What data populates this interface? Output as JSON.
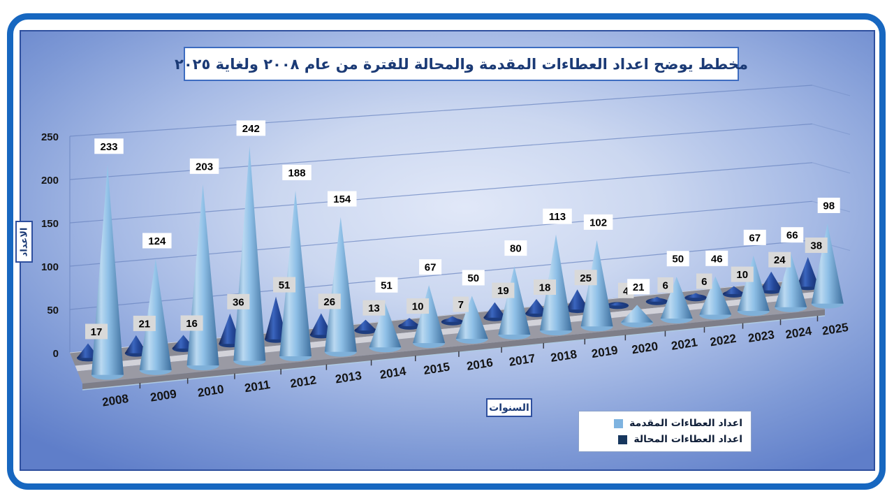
{
  "title": "مخطط يوضح اعداد العطاءات المقدمة والمحالة للفترة من عام ٢٠٠٨ ولغاية ٢٠٢٥",
  "y_axis_title": "الاعداد",
  "x_axis_title": "السنوات",
  "legend": {
    "items": [
      {
        "label": "اعداد العطاءات المقدمة",
        "color": "#7EB3E0"
      },
      {
        "label": "اعداد العطاءات المحالة",
        "color": "#17375E"
      }
    ]
  },
  "colors": {
    "outer_frame": "#1767C0",
    "inner_border": "#2E4F9E",
    "title_text": "#1B3A75",
    "gridline": "#6B86C0",
    "submitted_cone": "#7EB3E0",
    "referred_cone": "#17375E",
    "submitted_label_bg": "#FFFFFF",
    "referred_label_bg": "#D9D9D9"
  },
  "chart_data": {
    "type": "bar",
    "subtype": "3d-cone",
    "title": "مخطط يوضح اعداد العطاءات المقدمة والمحالة للفترة من عام ٢٠٠٨ ولغاية ٢٠٢٥",
    "xlabel": "السنوات",
    "ylabel": "الاعداد",
    "categories": [
      "2008",
      "2009",
      "2010",
      "2011",
      "2012",
      "2013",
      "2014",
      "2015",
      "2016",
      "2017",
      "2018",
      "2019",
      "2020",
      "2021",
      "2022",
      "2023",
      "2024",
      "2025"
    ],
    "series": [
      {
        "name": "اعداد العطاءات المقدمة",
        "color": "#7EB3E0",
        "values": [
          233,
          124,
          203,
          242,
          188,
          154,
          51,
          67,
          50,
          80,
          113,
          102,
          21,
          50,
          46,
          67,
          66,
          98
        ]
      },
      {
        "name": "اعداد العطاءات المحالة",
        "color": "#17375E",
        "values": [
          17,
          21,
          16,
          36,
          51,
          26,
          13,
          10,
          7,
          19,
          18,
          25,
          4,
          6,
          6,
          10,
          24,
          38
        ]
      }
    ],
    "ylim": [
      0,
      250
    ],
    "yticks": [
      0,
      50,
      100,
      150,
      200,
      250
    ],
    "grid": true,
    "data_labels": true,
    "legend_position": "bottom-right"
  }
}
